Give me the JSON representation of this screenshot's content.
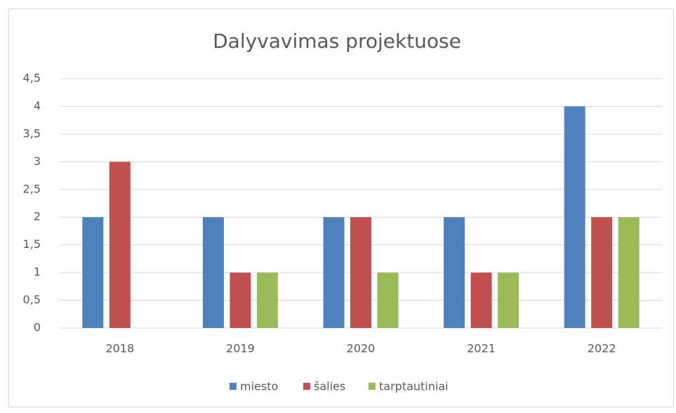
{
  "chart_data": {
    "type": "bar",
    "title": "Dalyvavimas projektuose",
    "categories": [
      "2018",
      "2019",
      "2020",
      "2021",
      "2022"
    ],
    "series": [
      {
        "name": "miesto",
        "color": "#4f81bd",
        "values": [
          2,
          2,
          2,
          2,
          4
        ]
      },
      {
        "name": "šalies",
        "color": "#c0504d",
        "values": [
          3,
          1,
          2,
          1,
          2
        ]
      },
      {
        "name": "tarptautiniai",
        "color": "#9bbb59",
        "values": [
          0,
          1,
          1,
          1,
          2
        ]
      }
    ],
    "ylim": [
      0,
      4.5
    ],
    "yticks": [
      0,
      {
        "value": 0.5,
        "label": "0,5"
      },
      1,
      {
        "value": 1.5,
        "label": "1,5"
      },
      2,
      {
        "value": 2.5,
        "label": "2,5"
      },
      3,
      {
        "value": 3.5,
        "label": "3,5"
      },
      4,
      {
        "value": 4.5,
        "label": "4,5"
      }
    ],
    "grid": true,
    "legend": "bottom"
  }
}
